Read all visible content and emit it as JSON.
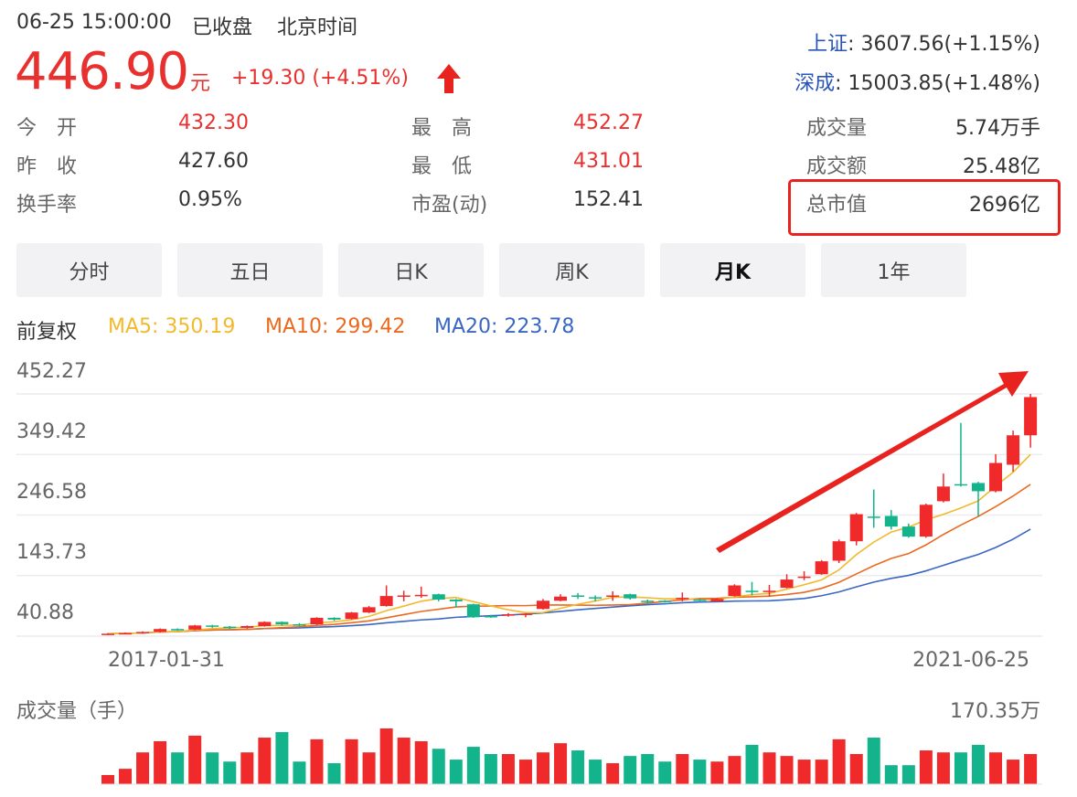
{
  "header": {
    "datetime": "06-25 15:00:00",
    "status": "已收盘",
    "timezone": "北京时间",
    "price": "446.90",
    "unit": "元",
    "change": "+19.30 (+4.51%)",
    "direction_icon": "arrow-up-icon"
  },
  "indices": [
    {
      "name": "上证",
      "value": ": 3607.56(+1.15%)"
    },
    {
      "name": "深成",
      "value": ": 15003.85(+1.48%)"
    }
  ],
  "stats": [
    {
      "label": "今　开",
      "value": "432.30",
      "color": "#e8312f"
    },
    {
      "label": "昨　收",
      "value": "427.60",
      "color": "#333333"
    },
    {
      "label": "换手率",
      "value": "0.95%",
      "color": "#333333"
    },
    {
      "label": "最　高",
      "value": "452.27",
      "color": "#e8312f"
    },
    {
      "label": "最　低",
      "value": "431.01",
      "color": "#e8312f"
    },
    {
      "label": "市盈(动)",
      "value": "152.41",
      "color": "#333333"
    },
    {
      "label": "成交量",
      "value": "5.74万手",
      "color": "#333333"
    },
    {
      "label": "成交额",
      "value": "25.48亿",
      "color": "#333333"
    },
    {
      "label": "总市值",
      "value": "2696亿",
      "color": "#333333"
    }
  ],
  "tabs": [
    {
      "label": "分时"
    },
    {
      "label": "五日"
    },
    {
      "label": "日K"
    },
    {
      "label": "周K"
    },
    {
      "label": "月K",
      "active": true
    },
    {
      "label": "1年"
    }
  ],
  "ma_legend": {
    "adjust": "前复权",
    "ma5": "MA5: 350.19",
    "ma10": "MA10: 299.42",
    "ma20": "MA20: 223.78"
  },
  "colors": {
    "up": "#f02a2a",
    "down": "#13b38c",
    "ma5": "#f2b92c",
    "ma10": "#ea6a1f",
    "ma20": "#3a66c4",
    "highlight": "#e8221f"
  },
  "chart_data": {
    "type": "candlestick",
    "period": "monthly",
    "y_ticks": [
      "452.27",
      "349.42",
      "246.58",
      "143.73",
      "40.88"
    ],
    "ylim": [
      40.88,
      452.27
    ],
    "x_start_label": "2017-01-31",
    "x_end_label": "2021-06-25",
    "grid": true,
    "ohlc_note": "[open, close, high, low]",
    "candles": [
      [
        44,
        45,
        46,
        43
      ],
      [
        45,
        46,
        47,
        44
      ],
      [
        46,
        48,
        49,
        45
      ],
      [
        48,
        53,
        54,
        47
      ],
      [
        53,
        51,
        54,
        50
      ],
      [
        52,
        59,
        60,
        51
      ],
      [
        59,
        57,
        60,
        55
      ],
      [
        57,
        55,
        58,
        53
      ],
      [
        55,
        58,
        59,
        54
      ],
      [
        58,
        65,
        66,
        57
      ],
      [
        65,
        61,
        66,
        59
      ],
      [
        61,
        60,
        63,
        58
      ],
      [
        61,
        72,
        73,
        60
      ],
      [
        72,
        69,
        73,
        67
      ],
      [
        70,
        81,
        82,
        69
      ],
      [
        81,
        90,
        92,
        80
      ],
      [
        92,
        109,
        127,
        91
      ],
      [
        108,
        110,
        118,
        100
      ],
      [
        109,
        111,
        125,
        106
      ],
      [
        112,
        103,
        113,
        100
      ],
      [
        103,
        100,
        104,
        90
      ],
      [
        95,
        73,
        96,
        72
      ],
      [
        75,
        74,
        77,
        72
      ],
      [
        76,
        78,
        80,
        74
      ],
      [
        78,
        79,
        80,
        73
      ],
      [
        87,
        101,
        104,
        86
      ],
      [
        101,
        108,
        112,
        100
      ],
      [
        110,
        109,
        114,
        104
      ],
      [
        107,
        106,
        110,
        100
      ],
      [
        108,
        110,
        117,
        101
      ],
      [
        112,
        105,
        113,
        103
      ],
      [
        101,
        100,
        103,
        95
      ],
      [
        101,
        100,
        102,
        98
      ],
      [
        104,
        106,
        115,
        100
      ],
      [
        103,
        102,
        104,
        100
      ],
      [
        100,
        104,
        105,
        99
      ],
      [
        109,
        127,
        129,
        108
      ],
      [
        118,
        117,
        133,
        110
      ],
      [
        116,
        118,
        128,
        108
      ],
      [
        123,
        137,
        146,
        122
      ],
      [
        140,
        142,
        151,
        136
      ],
      [
        146,
        168,
        170,
        145
      ],
      [
        169,
        202,
        205,
        165
      ],
      [
        202,
        248,
        250,
        195
      ],
      [
        244,
        243,
        290,
        225
      ],
      [
        245,
        227,
        255,
        222
      ],
      [
        227,
        210,
        232,
        208
      ],
      [
        210,
        264,
        266,
        208
      ],
      [
        270,
        295,
        317,
        268
      ],
      [
        299,
        297,
        403,
        295
      ],
      [
        301,
        287,
        303,
        244
      ],
      [
        287,
        335,
        350,
        285
      ],
      [
        332,
        382,
        390,
        320
      ],
      [
        382,
        446.9,
        452.27,
        361
      ]
    ],
    "volume_label": "成交量（手）",
    "volume_max_label": "170.35万",
    "volume_unit": "万手",
    "volume": [
      28,
      47,
      97,
      131,
      97,
      148,
      97,
      69,
      97,
      142,
      159,
      69,
      137,
      64,
      137,
      97,
      170,
      142,
      131,
      108,
      75,
      114,
      92,
      92,
      75,
      97,
      125,
      103,
      75,
      64,
      86,
      92,
      69,
      92,
      75,
      69,
      86,
      120,
      97,
      86,
      75,
      75,
      137,
      92,
      142,
      58,
      58,
      103,
      97,
      97,
      120,
      97,
      75,
      92
    ]
  },
  "annotation": {
    "trend_arrow": "arrow-up-right-icon"
  }
}
